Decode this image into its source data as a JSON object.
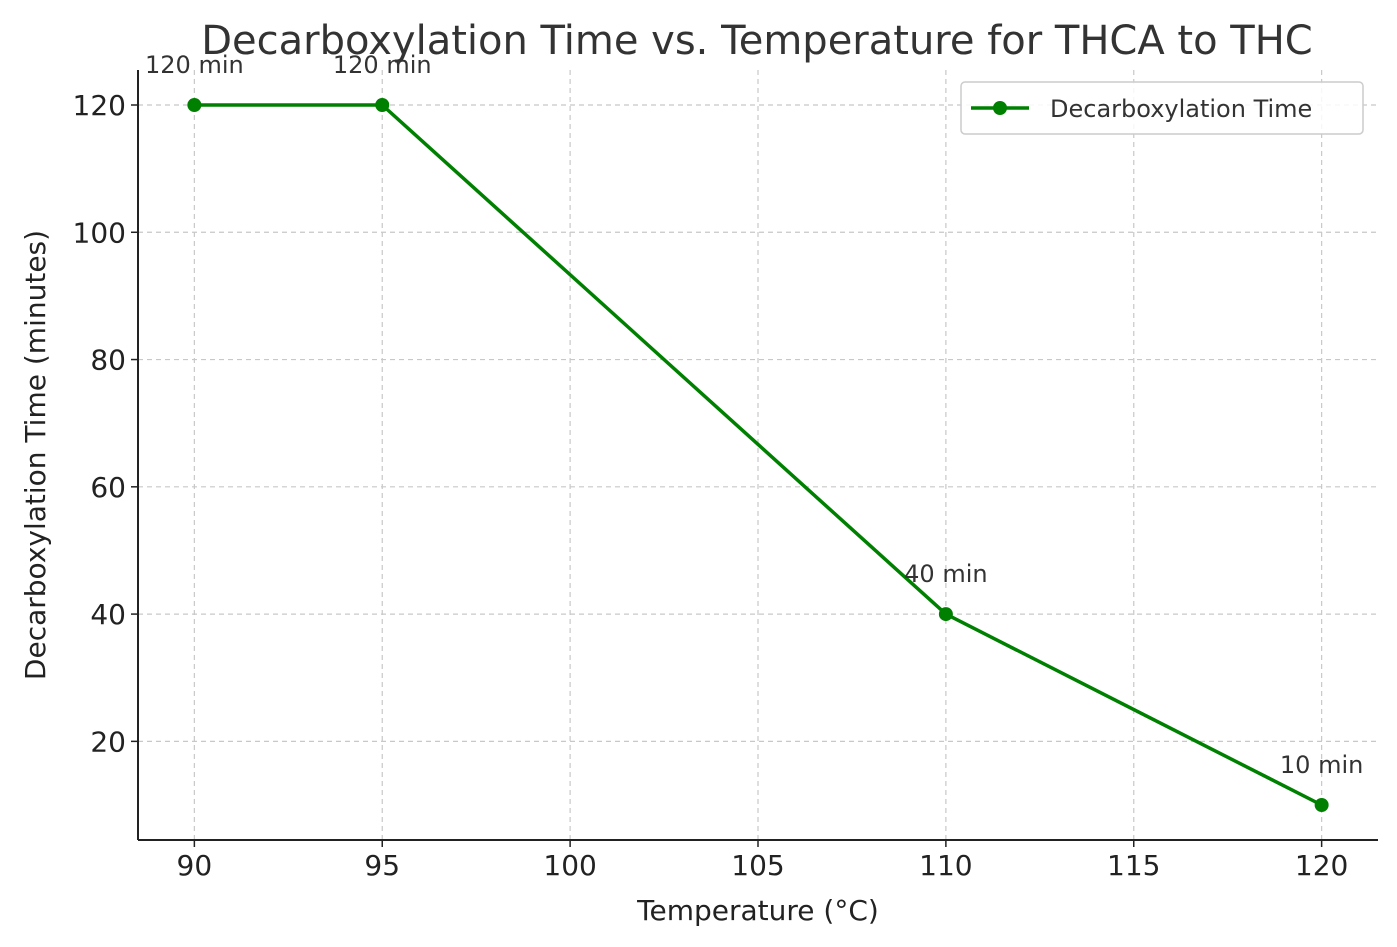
{
  "chart_data": {
    "type": "line",
    "title": "Decarboxylation Time vs. Temperature for THCA to THC",
    "xlabel": "Temperature (°C)",
    "ylabel": "Decarboxylation Time (minutes)",
    "x": [
      90,
      95,
      110,
      120
    ],
    "series": [
      {
        "name": "Decarboxylation Time",
        "values": [
          120,
          120,
          40,
          10
        ],
        "color": "#008000",
        "marker": "circle"
      }
    ],
    "data_labels": [
      "120 min",
      "120 min",
      "40 min",
      "10 min"
    ],
    "xticks": [
      90,
      95,
      100,
      105,
      110,
      115,
      120
    ],
    "yticks": [
      20,
      40,
      60,
      80,
      100,
      120
    ],
    "xlim": [
      88.5,
      121.5
    ],
    "ylim": [
      4.5,
      125.5
    ],
    "grid": true,
    "legend_position": "top-right"
  }
}
